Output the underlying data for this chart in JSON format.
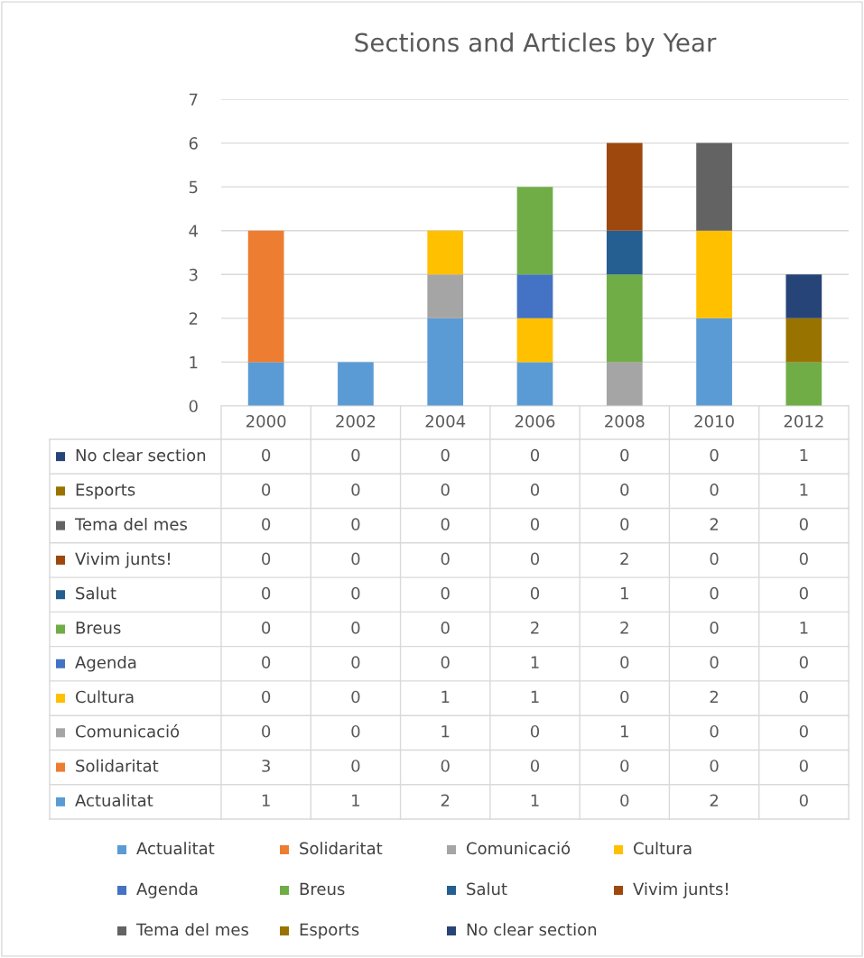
{
  "chart_data": {
    "type": "bar",
    "title": "Sections and Articles by Year",
    "stacked": true,
    "legend": "bottom",
    "grid": "y",
    "categories": [
      "2000",
      "2002",
      "2004",
      "2006",
      "2008",
      "2010",
      "2012"
    ],
    "ylim": [
      0,
      7
    ],
    "yticks": [
      0,
      1,
      2,
      3,
      4,
      5,
      6,
      7
    ],
    "series": [
      {
        "name": "Actualitat",
        "color": "#5b9bd5",
        "values": [
          1,
          1,
          2,
          1,
          0,
          2,
          0
        ],
        "value_labels": [
          "1",
          "1",
          "2",
          "1",
          "0",
          "2",
          "0"
        ]
      },
      {
        "name": "Solidaritat",
        "color": "#ed7d31",
        "values": [
          3,
          0,
          0,
          0,
          0,
          0,
          0
        ],
        "value_labels": [
          "3",
          "0",
          "0",
          "0",
          "0",
          "0",
          "0"
        ]
      },
      {
        "name": "Comunicació",
        "color": "#a5a5a5",
        "values": [
          0,
          0,
          1,
          0,
          1,
          0,
          0
        ],
        "value_labels": [
          "0",
          "0",
          "1",
          "0",
          "1",
          "0",
          "0"
        ]
      },
      {
        "name": "Cultura",
        "color": "#ffc000",
        "values": [
          0,
          0,
          1,
          1,
          0,
          2,
          0
        ],
        "value_labels": [
          "0",
          "0",
          "1",
          "1",
          "0",
          "2",
          "0"
        ]
      },
      {
        "name": "Agenda",
        "color": "#4472c4",
        "values": [
          0,
          0,
          0,
          1,
          0,
          0,
          0
        ],
        "value_labels": [
          "0",
          "0",
          "0",
          "1",
          "0",
          "0",
          "0"
        ]
      },
      {
        "name": "Breus",
        "color": "#70ad47",
        "values": [
          0,
          0,
          0,
          2,
          2,
          0,
          1
        ],
        "value_labels": [
          "0",
          "0",
          "0",
          "2",
          "2",
          "0",
          "1"
        ]
      },
      {
        "name": "Salut",
        "color": "#255e91",
        "values": [
          0,
          0,
          0,
          0,
          1,
          0,
          0
        ],
        "value_labels": [
          "0",
          "0",
          "0",
          "0",
          "1",
          "0",
          "0"
        ]
      },
      {
        "name": "Vivim junts!",
        "color": "#9e480e",
        "values": [
          0,
          0,
          0,
          0,
          2,
          0,
          0
        ],
        "value_labels": [
          "0",
          "0",
          "0",
          "0",
          "2",
          "0",
          "0"
        ]
      },
      {
        "name": "Tema del mes",
        "color": "#636363",
        "values": [
          0,
          0,
          0,
          0,
          0,
          2,
          0
        ],
        "value_labels": [
          "0",
          "0",
          "0",
          "0",
          "0",
          "2",
          "0"
        ]
      },
      {
        "name": "Esports",
        "color": "#997300",
        "values": [
          0,
          0,
          0,
          0,
          0,
          0,
          1
        ],
        "value_labels": [
          "0",
          "0",
          "0",
          "0",
          "0",
          "0",
          "1"
        ]
      },
      {
        "name": "No clear section",
        "color": "#264478",
        "values": [
          0,
          0,
          0,
          0,
          0,
          0,
          1
        ],
        "value_labels": [
          "0",
          "0",
          "0",
          "0",
          "0",
          "0",
          "1"
        ]
      }
    ]
  }
}
